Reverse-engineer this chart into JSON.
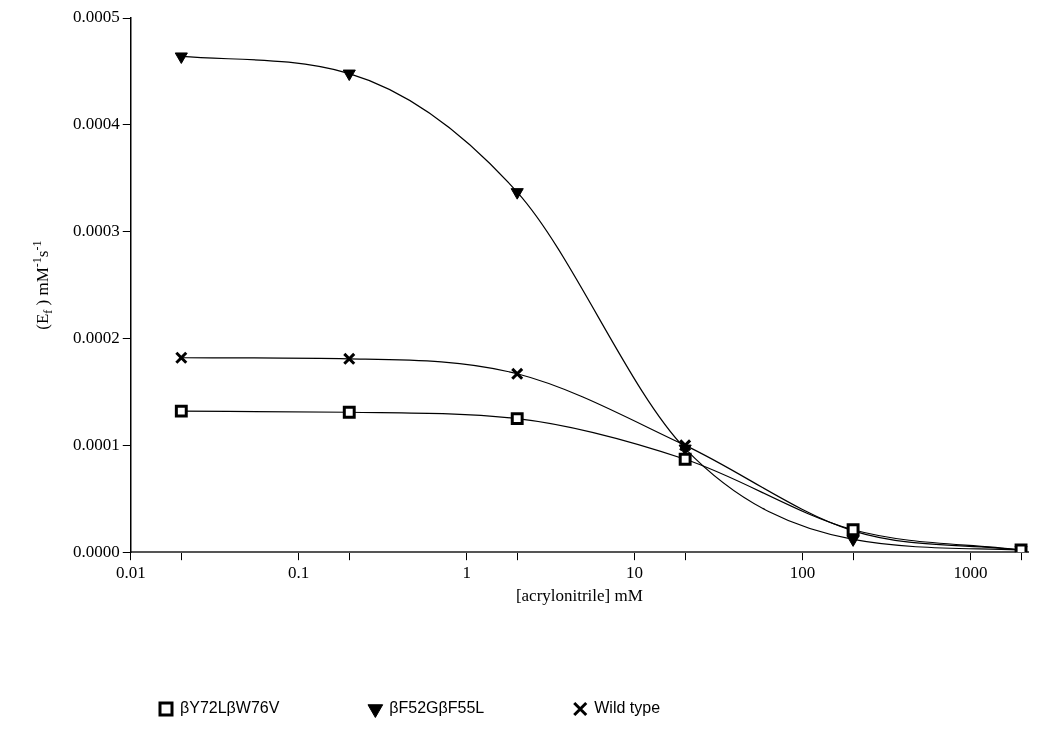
{
  "chart_data": {
    "type": "line",
    "xlabel": "[acrylonitrile] mM",
    "ylabel": "(E$_{f}$ ) mM$^{-1}$s$^{-1}$",
    "x": [
      0.02,
      0.2,
      2,
      20,
      200,
      2000
    ],
    "log": "x",
    "xlim": [
      0.01,
      2200
    ],
    "xticks": [
      0.01,
      {
        "value": 0.02,
        "label": null
      },
      0.1,
      {
        "value": 0.2,
        "label": null
      },
      1,
      {
        "value": 2,
        "label": null
      },
      10,
      {
        "value": 20,
        "label": null
      },
      100,
      {
        "value": 200,
        "label": null
      },
      1000,
      {
        "value": 2000,
        "label": null
      }
    ],
    "ylim": [
      0,
      0.0005
    ],
    "yticks": [
      {
        "value": 0,
        "label": "0.0000"
      },
      {
        "value": 0.0001,
        "label": "0.0001"
      },
      {
        "value": 0.0002,
        "label": "0.0002"
      },
      {
        "value": 0.0003,
        "label": "0.0003"
      },
      {
        "value": 0.0004,
        "label": "0.0004"
      },
      {
        "value": 0.0005,
        "label": "0.0005"
      }
    ],
    "grid": false,
    "legend": "bottom",
    "series": [
      {
        "name": "βY72LβW76V",
        "color": "#000000",
        "marker": "square",
        "values": [
          0.000132,
          0.000131,
          0.000125,
          8.7e-05,
          2.1e-05,
          2e-06
        ]
      },
      {
        "name": "βF52GβF55L",
        "color": "#000000",
        "marker": "triangle",
        "values": [
          0.000464,
          0.000448,
          0.000337,
          9.7e-05,
          1.2e-05,
          2e-06
        ]
      },
      {
        "name": "Wild type",
        "color": "#000000",
        "marker": "cross",
        "values": [
          0.000182,
          0.000181,
          0.000167,
          0.0001,
          2e-05,
          2e-06
        ]
      }
    ]
  }
}
